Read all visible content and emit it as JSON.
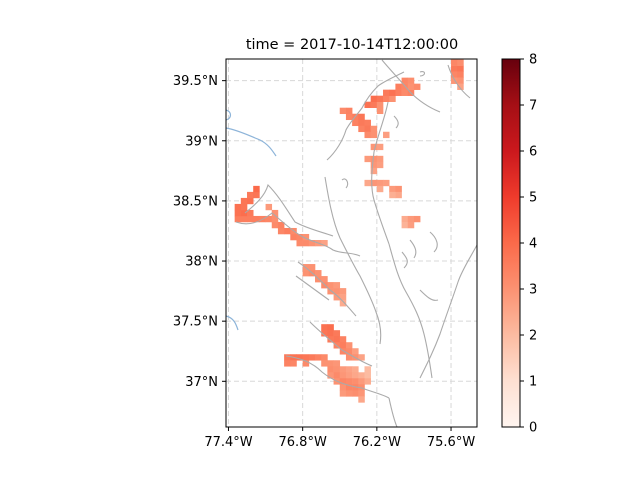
{
  "chart_data": {
    "type": "heatmap",
    "title": "time = 2017-10-14T12:00:00",
    "x_tick_labels": [
      "77.4°W",
      "76.8°W",
      "76.2°W",
      "75.6°W"
    ],
    "y_tick_labels": [
      "37°N",
      "37.5°N",
      "38°N",
      "38.5°N",
      "39°N",
      "39.5°N"
    ],
    "x_ticks": [
      -77.4,
      -76.8,
      -76.2,
      -75.6
    ],
    "y_ticks": [
      37.0,
      37.5,
      38.0,
      38.5,
      39.0,
      39.5
    ],
    "xlim": [
      -77.42,
      -75.39
    ],
    "ylim": [
      36.62,
      39.68
    ],
    "grid": true,
    "colormap": "Reds",
    "colorbar": {
      "range": [
        0,
        8
      ],
      "tick_labels": [
        "0",
        "1",
        "2",
        "3",
        "4",
        "5",
        "6",
        "7",
        "8"
      ]
    },
    "cell_size_deg": 0.05,
    "cells": [
      [
        -76.825,
        38.15,
        3.2
      ],
      [
        -76.775,
        38.15,
        3.2
      ],
      [
        -76.725,
        38.15,
        3.0
      ],
      [
        -76.675,
        38.15,
        2.8
      ],
      [
        -76.625,
        38.15,
        2.6
      ],
      [
        -76.875,
        38.2,
        3.4
      ],
      [
        -76.825,
        38.2,
        3.3
      ],
      [
        -76.775,
        38.2,
        3.0
      ],
      [
        -76.975,
        38.25,
        3.3
      ],
      [
        -76.925,
        38.25,
        3.5
      ],
      [
        -76.875,
        38.25,
        3.2
      ],
      [
        -77.025,
        38.3,
        3.2
      ],
      [
        -76.975,
        38.3,
        3.4
      ],
      [
        -77.325,
        38.35,
        3.5
      ],
      [
        -77.275,
        38.35,
        3.5
      ],
      [
        -77.225,
        38.35,
        3.5
      ],
      [
        -77.175,
        38.35,
        3.5
      ],
      [
        -77.125,
        38.35,
        3.4
      ],
      [
        -77.075,
        38.35,
        3.3
      ],
      [
        -77.025,
        38.35,
        3.1
      ],
      [
        -77.325,
        38.4,
        3.8
      ],
      [
        -77.275,
        38.4,
        3.9
      ],
      [
        -77.225,
        38.4,
        3.6
      ],
      [
        -77.025,
        38.4,
        3.0
      ],
      [
        -77.325,
        38.45,
        3.8
      ],
      [
        -77.275,
        38.45,
        3.7
      ],
      [
        -77.075,
        38.45,
        2.8
      ],
      [
        -77.275,
        38.5,
        3.7
      ],
      [
        -77.225,
        38.5,
        3.8
      ],
      [
        -77.225,
        38.55,
        3.6
      ],
      [
        -77.175,
        38.55,
        3.7
      ],
      [
        -77.175,
        38.6,
        4.0
      ],
      [
        -76.775,
        37.95,
        3.0
      ],
      [
        -76.725,
        37.95,
        3.0
      ],
      [
        -76.775,
        37.9,
        3.0
      ],
      [
        -76.725,
        37.9,
        3.2
      ],
      [
        -76.675,
        37.9,
        3.0
      ],
      [
        -76.675,
        37.85,
        3.1
      ],
      [
        -76.625,
        37.85,
        3.0
      ],
      [
        -76.625,
        37.8,
        3.2
      ],
      [
        -76.575,
        37.8,
        3.0
      ],
      [
        -76.525,
        37.8,
        2.8
      ],
      [
        -76.575,
        37.75,
        3.0
      ],
      [
        -76.525,
        37.75,
        3.0
      ],
      [
        -76.475,
        37.75,
        2.8
      ],
      [
        -76.525,
        37.7,
        2.8
      ],
      [
        -76.475,
        37.7,
        2.6
      ],
      [
        -76.475,
        37.65,
        2.4
      ],
      [
        -76.625,
        37.45,
        3.8
      ],
      [
        -76.575,
        37.45,
        3.9
      ],
      [
        -76.625,
        37.4,
        3.7
      ],
      [
        -76.575,
        37.4,
        3.8
      ],
      [
        -76.525,
        37.4,
        3.6
      ],
      [
        -76.575,
        37.35,
        3.6
      ],
      [
        -76.525,
        37.35,
        3.7
      ],
      [
        -76.475,
        37.35,
        3.4
      ],
      [
        -76.525,
        37.3,
        3.4
      ],
      [
        -76.475,
        37.3,
        3.5
      ],
      [
        -76.425,
        37.3,
        3.0
      ],
      [
        -76.475,
        37.25,
        3.3
      ],
      [
        -76.425,
        37.25,
        3.2
      ],
      [
        -76.375,
        37.25,
        2.7
      ],
      [
        -76.425,
        37.2,
        3.1
      ],
      [
        -76.375,
        37.2,
        3.0
      ],
      [
        -76.325,
        37.2,
        2.6
      ],
      [
        -76.925,
        37.2,
        3.6
      ],
      [
        -76.875,
        37.2,
        3.8
      ],
      [
        -76.825,
        37.2,
        3.8
      ],
      [
        -76.775,
        37.2,
        3.7
      ],
      [
        -76.725,
        37.2,
        3.6
      ],
      [
        -76.675,
        37.2,
        3.4
      ],
      [
        -76.625,
        37.2,
        3.2
      ],
      [
        -76.925,
        37.15,
        3.4
      ],
      [
        -76.875,
        37.15,
        3.3
      ],
      [
        -76.775,
        37.15,
        3.2
      ],
      [
        -76.625,
        37.15,
        3.0
      ],
      [
        -76.575,
        37.15,
        3.0
      ],
      [
        -76.525,
        37.15,
        2.9
      ],
      [
        -76.575,
        37.1,
        3.1
      ],
      [
        -76.525,
        37.1,
        3.0
      ],
      [
        -76.475,
        37.1,
        2.8
      ],
      [
        -76.425,
        37.1,
        2.6
      ],
      [
        -76.375,
        37.1,
        2.4
      ],
      [
        -76.275,
        37.1,
        2.0
      ],
      [
        -76.575,
        37.05,
        2.9
      ],
      [
        -76.525,
        37.05,
        3.2
      ],
      [
        -76.475,
        37.05,
        2.9
      ],
      [
        -76.425,
        37.05,
        2.7
      ],
      [
        -76.375,
        37.05,
        2.5
      ],
      [
        -76.325,
        37.05,
        2.3
      ],
      [
        -76.275,
        37.05,
        2.0
      ],
      [
        -76.525,
        37.0,
        3.0
      ],
      [
        -76.475,
        37.0,
        3.3
      ],
      [
        -76.425,
        37.0,
        3.2
      ],
      [
        -76.375,
        37.0,
        3.1
      ],
      [
        -76.325,
        37.0,
        2.8
      ],
      [
        -76.275,
        37.0,
        2.4
      ],
      [
        -76.475,
        36.95,
        3.0
      ],
      [
        -76.425,
        36.95,
        3.3
      ],
      [
        -76.375,
        36.95,
        3.3
      ],
      [
        -76.325,
        36.95,
        3.1
      ],
      [
        -76.475,
        36.9,
        2.8
      ],
      [
        -76.425,
        36.9,
        3.0
      ],
      [
        -76.375,
        36.9,
        3.1
      ],
      [
        -76.325,
        36.9,
        2.9
      ],
      [
        -76.325,
        36.85,
        2.5
      ],
      [
        -76.475,
        39.25,
        3.2
      ],
      [
        -76.425,
        39.25,
        3.4
      ],
      [
        -76.425,
        39.2,
        3.3
      ],
      [
        -76.375,
        39.2,
        3.5
      ],
      [
        -76.325,
        39.2,
        3.7
      ],
      [
        -76.375,
        39.15,
        3.4
      ],
      [
        -76.325,
        39.15,
        3.6
      ],
      [
        -76.275,
        39.15,
        3.5
      ],
      [
        -76.325,
        39.1,
        3.4
      ],
      [
        -76.275,
        39.1,
        3.6
      ],
      [
        -76.225,
        39.1,
        3.0
      ],
      [
        -76.275,
        39.05,
        3.2
      ],
      [
        -76.225,
        39.05,
        3.0
      ],
      [
        -76.125,
        39.05,
        2.7
      ],
      [
        -76.275,
        39.3,
        3.8
      ],
      [
        -76.225,
        39.3,
        3.6
      ],
      [
        -76.175,
        39.3,
        3.0
      ],
      [
        -76.225,
        39.35,
        3.9
      ],
      [
        -76.175,
        39.35,
        3.7
      ],
      [
        -76.125,
        39.35,
        3.4
      ],
      [
        -76.075,
        39.35,
        3.0
      ],
      [
        -76.125,
        39.4,
        3.6
      ],
      [
        -76.075,
        39.4,
        3.8
      ],
      [
        -76.025,
        39.4,
        3.5
      ],
      [
        -75.975,
        39.4,
        3.2
      ],
      [
        -75.925,
        39.4,
        3.4
      ],
      [
        -76.025,
        39.45,
        3.5
      ],
      [
        -75.975,
        39.45,
        3.3
      ],
      [
        -75.925,
        39.45,
        3.0
      ],
      [
        -75.875,
        39.45,
        3.2
      ],
      [
        -75.975,
        39.5,
        3.3
      ],
      [
        -75.925,
        39.5,
        3.1
      ],
      [
        -76.175,
        39.25,
        3.0
      ],
      [
        -76.225,
        38.95,
        2.9
      ],
      [
        -76.175,
        38.95,
        2.7
      ],
      [
        -76.275,
        38.85,
        2.8
      ],
      [
        -76.225,
        38.85,
        3.0
      ],
      [
        -76.175,
        38.85,
        2.8
      ],
      [
        -76.225,
        38.8,
        2.9
      ],
      [
        -76.175,
        38.8,
        2.7
      ],
      [
        -76.225,
        38.75,
        2.6
      ],
      [
        -76.275,
        38.65,
        2.5
      ],
      [
        -76.225,
        38.65,
        2.9
      ],
      [
        -76.175,
        38.65,
        2.8
      ],
      [
        -76.125,
        38.65,
        2.7
      ],
      [
        -76.075,
        38.6,
        2.8
      ],
      [
        -76.025,
        38.6,
        3.0
      ],
      [
        -76.175,
        38.6,
        2.4
      ],
      [
        -76.025,
        38.55,
        2.5
      ],
      [
        -76.075,
        38.55,
        2.3
      ],
      [
        -75.975,
        38.35,
        2.4
      ],
      [
        -75.925,
        38.35,
        2.8
      ],
      [
        -75.875,
        38.35,
        3.0
      ],
      [
        -75.975,
        38.3,
        2.2
      ],
      [
        -75.925,
        38.3,
        2.7
      ],
      [
        -75.575,
        39.6,
        3.6
      ],
      [
        -75.525,
        39.6,
        3.7
      ],
      [
        -75.575,
        39.55,
        3.3
      ],
      [
        -75.525,
        39.55,
        3.4
      ],
      [
        -75.525,
        39.5,
        3.0
      ],
      [
        -75.575,
        39.5,
        2.9
      ],
      [
        -75.525,
        39.45,
        2.6
      ],
      [
        -75.575,
        39.65,
        3.3
      ],
      [
        -75.525,
        39.65,
        3.1
      ]
    ]
  }
}
